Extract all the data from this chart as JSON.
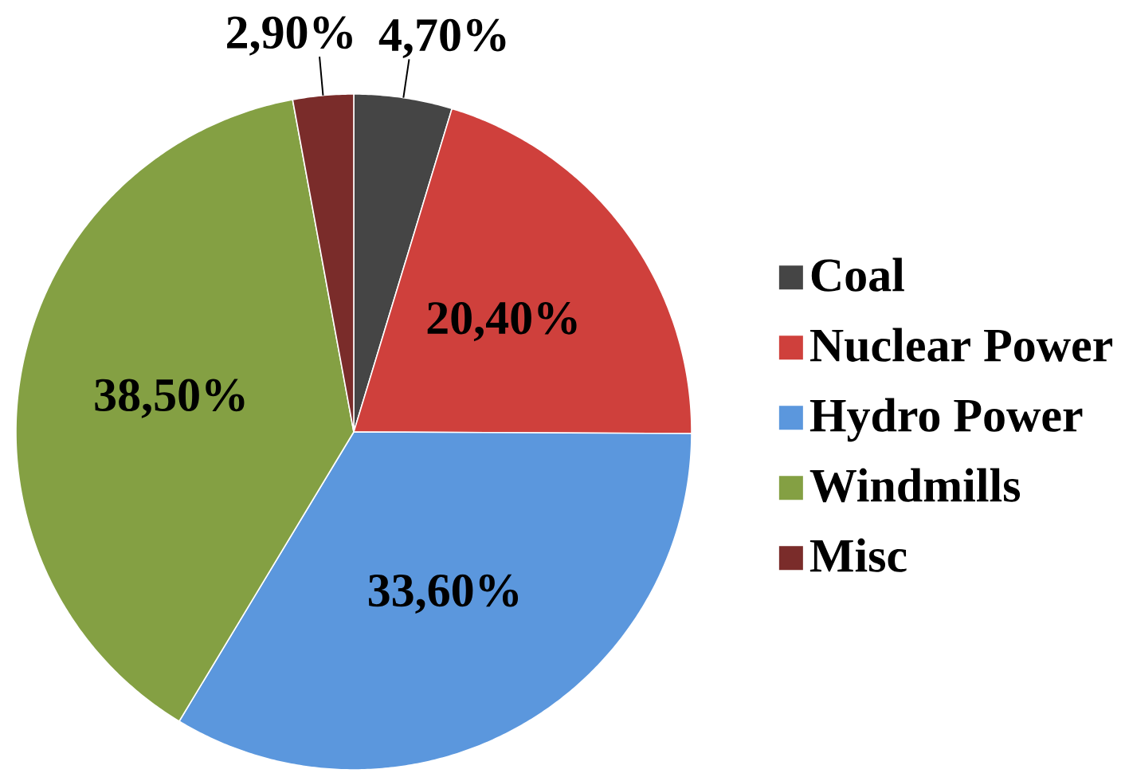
{
  "chart_data": {
    "type": "pie",
    "categories": [
      "Coal",
      "Nuclear Power",
      "Hydro Power",
      "Windmills",
      "Misc"
    ],
    "values": [
      4.7,
      20.4,
      33.6,
      38.5,
      2.9
    ],
    "colors": [
      "#454545",
      "#cf403c",
      "#5b97dd",
      "#84a043",
      "#7a2c2a"
    ],
    "value_labels": [
      "4,70%",
      "20,40%",
      "33,60%",
      "38,50%",
      "2,90%"
    ],
    "legend": "right"
  }
}
